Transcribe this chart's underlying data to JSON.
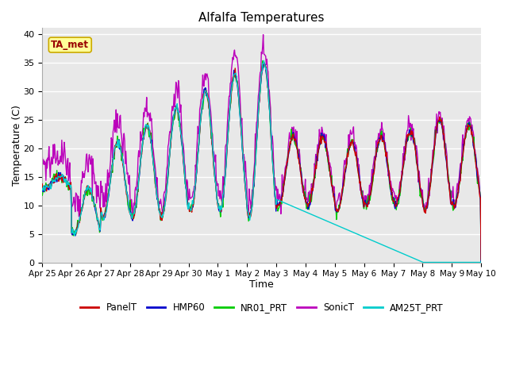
{
  "title": "Alfalfa Temperatures",
  "xlabel": "Time",
  "ylabel": "Temperature (C)",
  "ylim": [
    0,
    41
  ],
  "yticks": [
    0,
    5,
    10,
    15,
    20,
    25,
    30,
    35,
    40
  ],
  "annotation_text": "TA_met",
  "colors": {
    "PanelT": "#cc0000",
    "HMP60": "#0000cc",
    "NR01_PRT": "#00cc00",
    "SonicT": "#bb00bb",
    "AM25T_PRT": "#00cccc"
  },
  "legend_labels": [
    "PanelT",
    "HMP60",
    "NR01_PRT",
    "SonicT",
    "AM25T_PRT"
  ],
  "background_color": "#e8e8e8",
  "grid_color": "#ffffff",
  "fig_bg": "#ffffff",
  "tick_labels": [
    "Apr 25",
    "Apr 26",
    "Apr 27",
    "Apr 28",
    "Apr 29",
    "Apr 30",
    "May 1",
    "May 2",
    "May 3",
    "May 4",
    "May 5",
    "May 6",
    "May 7",
    "May 8",
    "May 9",
    "May 10"
  ],
  "n_days": 15,
  "pts_per_day": 48,
  "lows": [
    13,
    5,
    8,
    8,
    8,
    9,
    9,
    8,
    10,
    10,
    9,
    10,
    10,
    9,
    10
  ],
  "highs": [
    15,
    13,
    21,
    24,
    27,
    30,
    33,
    35,
    22,
    22,
    21,
    22,
    23,
    25,
    24
  ]
}
